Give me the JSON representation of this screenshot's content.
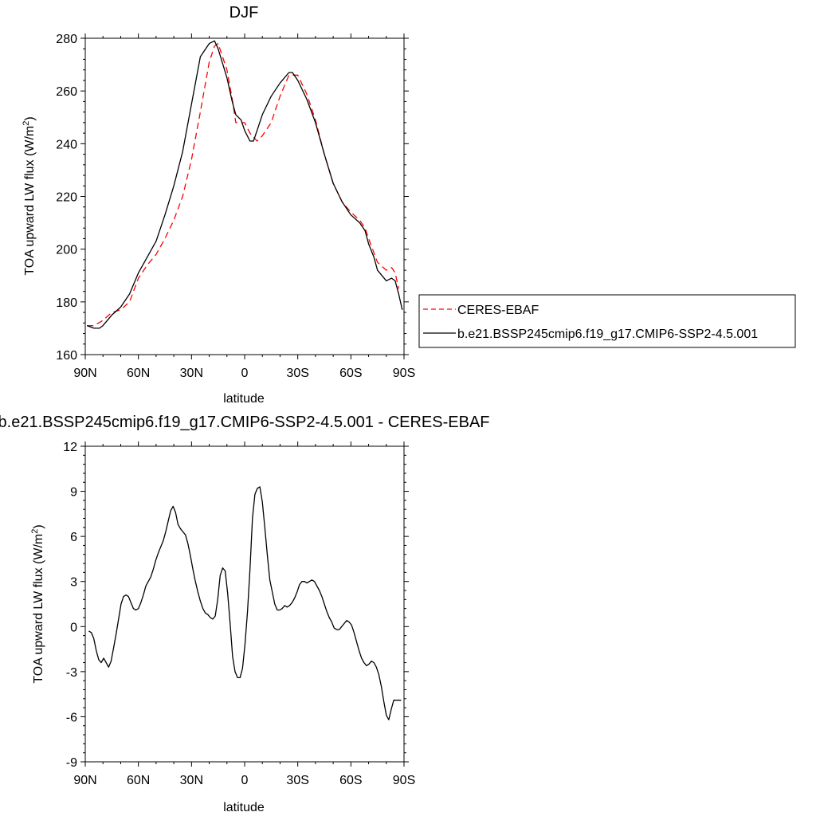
{
  "chart_data": [
    {
      "type": "line",
      "title": "DJF",
      "xlabel": "latitude",
      "ylabel": "TOA upward LW flux (W/m",
      "ylabel_sup": "2",
      "ylabel_tail": ")",
      "xlim": [
        90,
        -90
      ],
      "ylim": [
        160,
        280
      ],
      "x_ticks": [
        90,
        60,
        30,
        0,
        -30,
        -60,
        -90
      ],
      "x_tick_labels": [
        "90N",
        "60N",
        "30N",
        "0",
        "30S",
        "60S",
        "90S"
      ],
      "y_ticks": [
        160,
        180,
        200,
        220,
        240,
        260,
        280
      ],
      "y_tick_labels": [
        "160",
        "180",
        "200",
        "220",
        "240",
        "260",
        "280"
      ],
      "grid": false,
      "legend": {
        "placement": "right",
        "entries": [
          "CERES-EBAF",
          "b.e21.BSSP245cmip6.f19_g17.CMIP6-SSP2-4.5.001"
        ]
      },
      "series": [
        {
          "name": "CERES-EBAF",
          "color": "#ff0000",
          "style": "dashed",
          "x": [
            89,
            85,
            80,
            75,
            70,
            65,
            60,
            55,
            50,
            45,
            40,
            35,
            30,
            25,
            20,
            17,
            15,
            10,
            7,
            5,
            0,
            -3,
            -7,
            -10,
            -15,
            -20,
            -25,
            -30,
            -35,
            -40,
            -45,
            -50,
            -55,
            -60,
            -65,
            -68,
            -70,
            -75,
            -80,
            -83,
            -85,
            -87
          ],
          "y": [
            171,
            171,
            173,
            176,
            177,
            180,
            189,
            194,
            198,
            204,
            211,
            220,
            234,
            252,
            271,
            277,
            278,
            268,
            257,
            248,
            248,
            244,
            241,
            243,
            248,
            258,
            266,
            266,
            259,
            249,
            236,
            225,
            218,
            214,
            211,
            208,
            204,
            195,
            192,
            193,
            191,
            185
          ]
        },
        {
          "name": "b.e21.BSSP245cmip6.f19_g17.CMIP6-SSP2-4.5.001",
          "color": "#000000",
          "style": "solid",
          "x": [
            89,
            85,
            82,
            80,
            75,
            70,
            65,
            60,
            55,
            50,
            45,
            40,
            35,
            30,
            25,
            20,
            17,
            15,
            10,
            7,
            5,
            2,
            0,
            -3,
            -5,
            -7,
            -10,
            -15,
            -20,
            -25,
            -27,
            -30,
            -35,
            -40,
            -45,
            -50,
            -55,
            -60,
            -65,
            -68,
            -70,
            -73,
            -75,
            -80,
            -83,
            -85,
            -87,
            -89
          ],
          "y": [
            171,
            170,
            170,
            171,
            175,
            178,
            183,
            191,
            197,
            203,
            213,
            224,
            237,
            255,
            273,
            278,
            279,
            276,
            265,
            256,
            251,
            249,
            245,
            241,
            241,
            245,
            251,
            258,
            263,
            267,
            267,
            264,
            257,
            248,
            236,
            225,
            218,
            213,
            210,
            207,
            202,
            197,
            192,
            188,
            189,
            188,
            183,
            177
          ]
        }
      ]
    },
    {
      "type": "line",
      "title": "b.e21.BSSP245cmip6.f19_g17.CMIP6-SSP2-4.5.001 - CERES-EBAF",
      "xlabel": "latitude",
      "ylabel": "TOA upward LW flux (W/m",
      "ylabel_sup": "2",
      "ylabel_tail": ")",
      "xlim": [
        90,
        -90
      ],
      "ylim": [
        -9,
        12
      ],
      "x_ticks": [
        90,
        60,
        30,
        0,
        -30,
        -60,
        -90
      ],
      "x_tick_labels": [
        "90N",
        "60N",
        "30N",
        "0",
        "30S",
        "60S",
        "90S"
      ],
      "y_ticks": [
        -9,
        -6,
        -3,
        0,
        3,
        6,
        9,
        12
      ],
      "y_tick_labels": [
        "-9",
        "-6",
        "-3",
        "0",
        "3",
        "6",
        "9",
        "12"
      ],
      "grid": false,
      "series": [
        {
          "color": "#000000",
          "style": "solid",
          "x": [
            88,
            86.6,
            85.2,
            83.8,
            82.4,
            81.0,
            79.6,
            78.2,
            76.8,
            75.4,
            74.0,
            72.6,
            71.2,
            69.8,
            68.4,
            67.0,
            65.6,
            64.2,
            62.8,
            61.4,
            60.0,
            58.6,
            57.2,
            55.8,
            54.4,
            53.0,
            51.6,
            50.2,
            48.8,
            47.4,
            46.0,
            44.6,
            43.2,
            41.8,
            40.4,
            39.0,
            37.6,
            36.2,
            34.8,
            33.4,
            32.0,
            30.6,
            29.2,
            27.8,
            26.4,
            25.0,
            23.6,
            22.2,
            20.8,
            19.4,
            18.0,
            16.6,
            15.2,
            13.8,
            12.4,
            11.0,
            9.6,
            8.2,
            6.8,
            5.4,
            4.0,
            2.6,
            1.2,
            -0.2,
            -1.6,
            -3.0,
            -4.4,
            -5.8,
            -7.2,
            -8.6,
            -10.0,
            -11.4,
            -12.8,
            -14.2,
            -15.6,
            -17.0,
            -18.4,
            -19.8,
            -21.2,
            -22.6,
            -24.0,
            -25.4,
            -26.8,
            -28.2,
            -29.6,
            -31.0,
            -32.4,
            -33.8,
            -35.2,
            -36.6,
            -38.0,
            -39.4,
            -40.8,
            -42.2,
            -43.6,
            -45.0,
            -46.4,
            -47.8,
            -49.2,
            -50.6,
            -52.0,
            -53.4,
            -54.8,
            -56.2,
            -57.6,
            -59.0,
            -60.4,
            -61.8,
            -63.2,
            -64.6,
            -66.0,
            -67.4,
            -68.8,
            -70.2,
            -71.6,
            -73.0,
            -74.4,
            -75.8,
            -77.2,
            -78.6,
            -80.0,
            -81.4,
            -82.8,
            -84.2,
            -85.6,
            -87.0,
            -88.4
          ],
          "y": [
            -0.3,
            -0.4,
            -0.8,
            -1.6,
            -2.2,
            -2.4,
            -2.1,
            -2.4,
            -2.7,
            -2.3,
            -1.4,
            -0.5,
            0.5,
            1.5,
            2.0,
            2.1,
            2.0,
            1.6,
            1.2,
            1.1,
            1.2,
            1.6,
            2.1,
            2.7,
            3.0,
            3.3,
            3.8,
            4.4,
            4.9,
            5.3,
            5.7,
            6.3,
            7.0,
            7.7,
            8.0,
            7.6,
            6.8,
            6.5,
            6.3,
            6.1,
            5.5,
            4.7,
            3.8,
            3.0,
            2.3,
            1.7,
            1.2,
            0.9,
            0.8,
            0.6,
            0.5,
            0.7,
            1.8,
            3.4,
            3.9,
            3.7,
            2.2,
            0.2,
            -2.0,
            -3.0,
            -3.4,
            -3.4,
            -2.8,
            -1.2,
            1.0,
            3.8,
            7.2,
            8.8,
            9.2,
            9.3,
            8.3,
            6.6,
            4.8,
            3.1,
            2.3,
            1.5,
            1.1,
            1.1,
            1.2,
            1.4,
            1.3,
            1.4,
            1.6,
            1.9,
            2.3,
            2.8,
            3.0,
            3.0,
            2.9,
            3.0,
            3.1,
            3.0,
            2.7,
            2.4,
            2.0,
            1.5,
            1.0,
            0.6,
            0.3,
            -0.1,
            -0.2,
            -0.2,
            0.0,
            0.2,
            0.4,
            0.3,
            0.1,
            -0.4,
            -1.0,
            -1.6,
            -2.1,
            -2.4,
            -2.6,
            -2.5,
            -2.3,
            -2.4,
            -2.7,
            -3.2,
            -4.0,
            -5.0,
            -5.9,
            -6.2,
            -5.5,
            -4.9,
            -4.9,
            -4.9,
            -4.9
          ]
        }
      ]
    }
  ]
}
